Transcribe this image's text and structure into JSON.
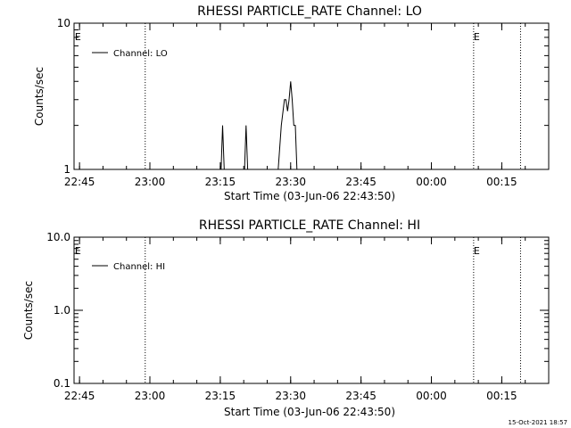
{
  "footer": {
    "timestamp": "15-Oct-2021 18:57"
  },
  "chart_data": [
    {
      "type": "line",
      "title": "RHESSI PARTICLE_RATE Channel: LO",
      "xlabel": "Start Time (03-Jun-06 22:43:50)",
      "ylabel": "Counts/sec",
      "yscale": "log",
      "ylim": [
        1,
        10
      ],
      "y_tick_labels": [
        "1",
        "10"
      ],
      "y_tick_values": [
        1,
        10
      ],
      "x_tick_labels": [
        "22:45",
        "23:00",
        "23:15",
        "23:30",
        "23:45",
        "00:00",
        "00:15"
      ],
      "x_tick_values": [
        "22:45",
        "23:00",
        "23:15",
        "23:30",
        "23:45",
        "00:00",
        "00:15"
      ],
      "xlim": [
        "22:43:50",
        "00:25:00"
      ],
      "legend": {
        "position": "top-left",
        "entries": [
          "Channel: LO"
        ]
      },
      "event_markers": [
        {
          "time": "22:44",
          "label": "E"
        },
        {
          "time": "00:09",
          "label": "E"
        }
      ],
      "dotted_lines": [
        "22:59",
        "00:09",
        "00:19"
      ],
      "series": [
        {
          "name": "Channel: LO",
          "x": [
            "23:15:10",
            "23:15:30",
            "23:15:50",
            "23:20:10",
            "23:20:30",
            "23:20:50",
            "23:27:20",
            "23:28:00",
            "23:28:40",
            "23:29:00",
            "23:29:20",
            "23:29:40",
            "23:30:00",
            "23:30:20",
            "23:30:40",
            "23:31:00",
            "23:31:20",
            "23:31:40"
          ],
          "values": [
            1,
            2,
            1,
            1,
            2,
            1,
            1,
            2,
            3,
            3,
            2.5,
            3,
            4,
            3,
            2,
            2,
            1,
            1
          ]
        }
      ]
    },
    {
      "type": "line",
      "title": "RHESSI PARTICLE_RATE Channel: HI",
      "xlabel": "Start Time (03-Jun-06 22:43:50)",
      "ylabel": "Counts/sec",
      "yscale": "log",
      "ylim": [
        0.1,
        10
      ],
      "y_tick_labels": [
        "0.1",
        "1.0",
        "10.0"
      ],
      "y_tick_values": [
        0.1,
        1,
        10
      ],
      "x_tick_labels": [
        "22:45",
        "23:00",
        "23:15",
        "23:30",
        "23:45",
        "00:00",
        "00:15"
      ],
      "x_tick_values": [
        "22:45",
        "23:00",
        "23:15",
        "23:30",
        "23:45",
        "00:00",
        "00:15"
      ],
      "xlim": [
        "22:43:50",
        "00:25:00"
      ],
      "legend": {
        "position": "top-left",
        "entries": [
          "Channel: HI"
        ]
      },
      "event_markers": [
        {
          "time": "22:44",
          "label": "E"
        },
        {
          "time": "00:09",
          "label": "E"
        }
      ],
      "dotted_lines": [
        "22:59",
        "00:09",
        "00:19"
      ],
      "series": [
        {
          "name": "Channel: HI",
          "x": [],
          "values": []
        }
      ]
    }
  ]
}
